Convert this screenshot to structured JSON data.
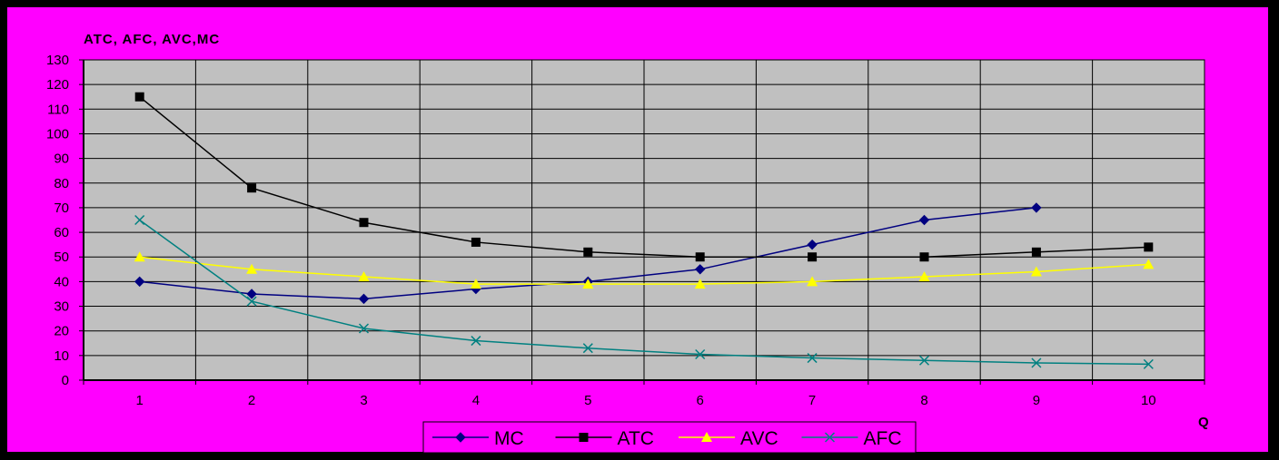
{
  "chart_data": {
    "type": "line",
    "title": "ATC, AFC, AVC,MC",
    "xlabel": "Q",
    "ylabel": "",
    "x": [
      1,
      2,
      3,
      4,
      5,
      6,
      7,
      8,
      9,
      10
    ],
    "ylim": [
      0,
      130
    ],
    "yticks": [
      0,
      10,
      20,
      30,
      40,
      50,
      60,
      70,
      80,
      90,
      100,
      110,
      120,
      130
    ],
    "grid": true,
    "legend_position": "bottom-center",
    "plot_background": "#C0C0C0",
    "page_background": "#FF00FF",
    "series": [
      {
        "name": "MC",
        "color": "#000080",
        "marker": "diamond",
        "values": [
          40,
          35,
          33,
          37,
          40,
          45,
          55,
          65,
          70,
          null
        ]
      },
      {
        "name": "ATC",
        "color": "#000000",
        "marker": "square",
        "values": [
          115,
          78,
          64,
          56,
          52,
          50,
          50,
          50,
          52,
          54
        ]
      },
      {
        "name": "AVC",
        "color": "#FFFF00",
        "marker": "triangle",
        "values": [
          50,
          45,
          42,
          39,
          39,
          39,
          40,
          42,
          44,
          47
        ]
      },
      {
        "name": "AFC",
        "color": "#008080",
        "marker": "x",
        "values": [
          65,
          32,
          21,
          16,
          13,
          10.5,
          9,
          8,
          7,
          6.5
        ]
      }
    ]
  }
}
